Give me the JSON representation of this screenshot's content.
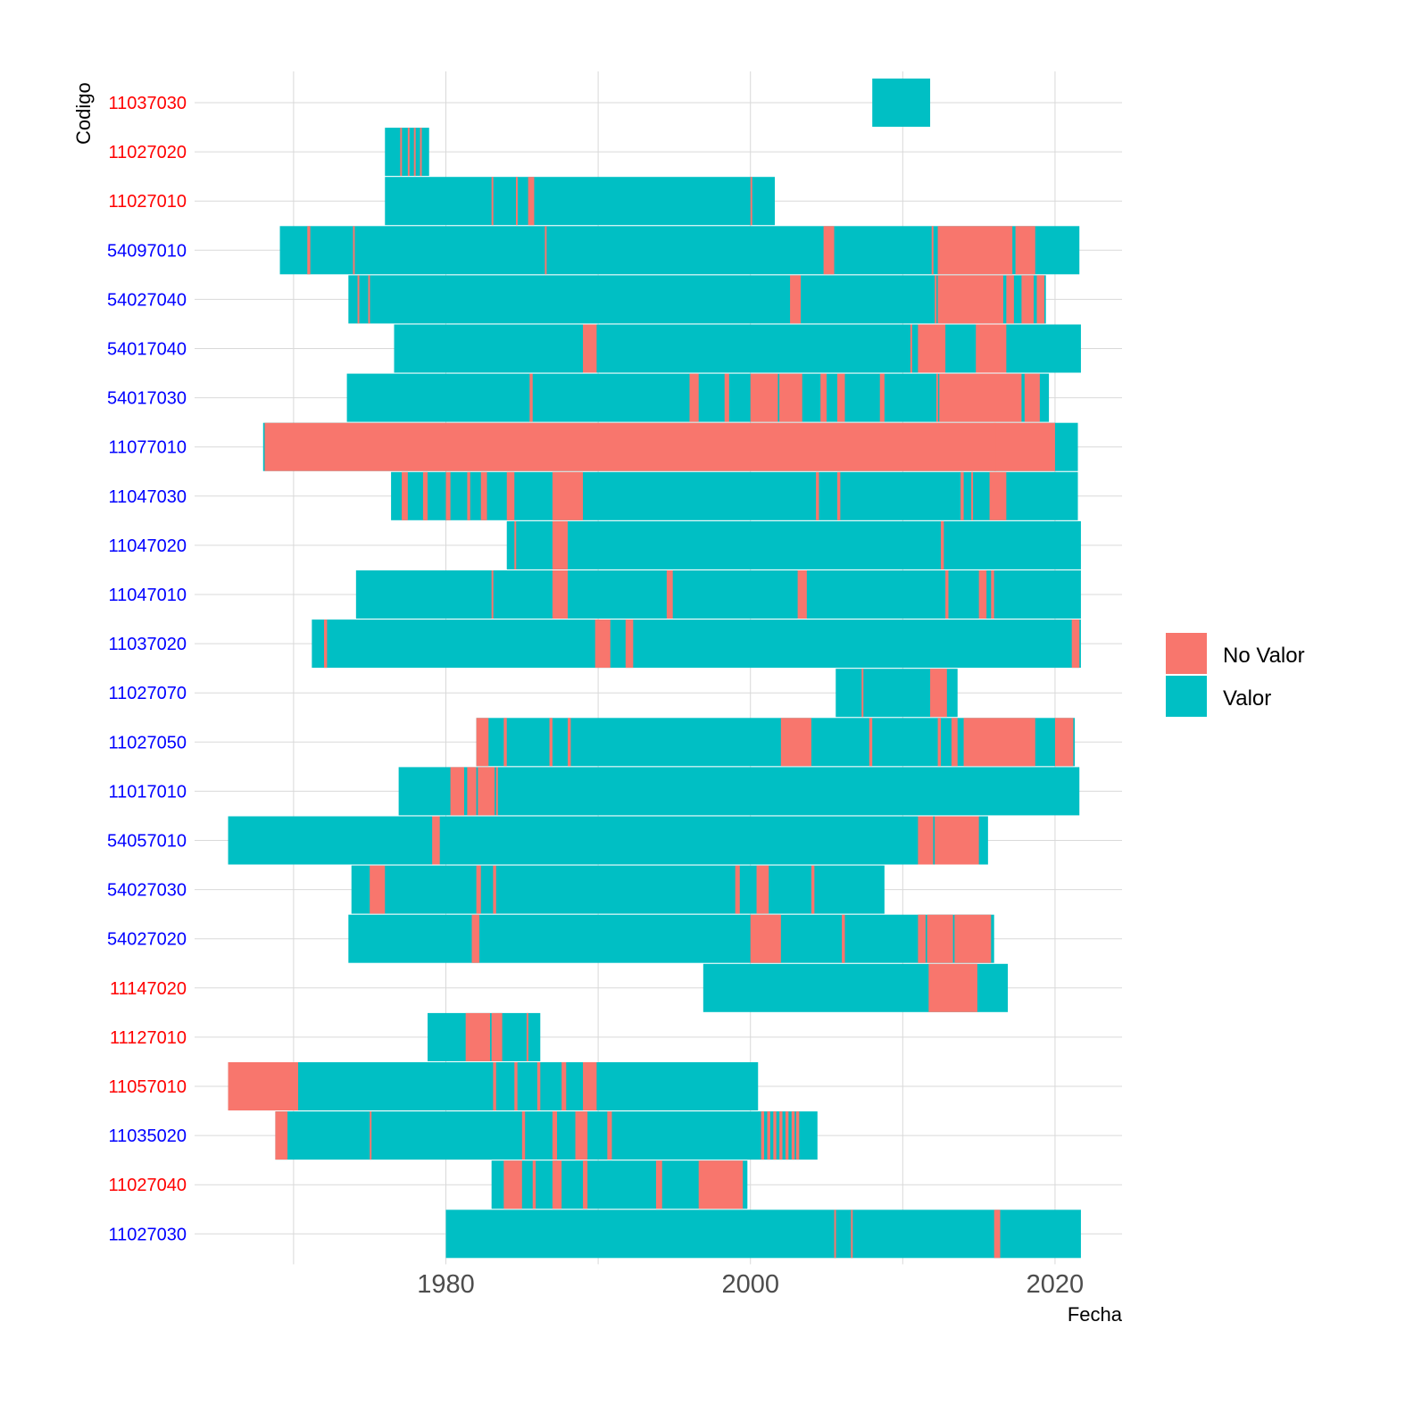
{
  "chart_data": {
    "type": "bar",
    "subtype": "timeline-coverage",
    "xlabel": "Fecha",
    "ylabel": "Codigo",
    "xlim": [
      1963.5,
      2024.4
    ],
    "x_ticks": [
      1980,
      2000,
      2020
    ],
    "x_minor_gridlines": [
      1970,
      1990,
      2010
    ],
    "grid": true,
    "legend": {
      "placement": "right",
      "entries": [
        {
          "key": "No Valor",
          "label": "No Valor",
          "color": "#F8766D"
        },
        {
          "key": "Valor",
          "label": "Valor",
          "color": "#00BFC4"
        }
      ]
    },
    "colors": {
      "No Valor": "#F8766D",
      "Valor": "#00BFC4",
      "grid": "#d9d9d9",
      "axis_text": "#4d4d4d"
    },
    "categories": [
      "11037030",
      "11027020",
      "11027010",
      "54097010",
      "54027040",
      "54017040",
      "54017030",
      "11077010",
      "11047030",
      "11047020",
      "11047010",
      "11037020",
      "11027070",
      "11027050",
      "11017010",
      "54057010",
      "54027030",
      "54027020",
      "11147020",
      "11127010",
      "11057010",
      "11035020",
      "11027040",
      "11027030"
    ],
    "series": [
      {
        "code": "11037030",
        "label_color": "red",
        "start": 2008.0,
        "end": 2011.8,
        "no_valor": []
      },
      {
        "code": "11027020",
        "label_color": "red",
        "start": 1976.0,
        "end": 1978.9,
        "no_valor": [
          [
            1977.0,
            1977.1
          ],
          [
            1977.5,
            1977.6
          ],
          [
            1977.9,
            1978.0
          ],
          [
            1978.3,
            1978.4
          ]
        ]
      },
      {
        "code": "11027010",
        "label_color": "red",
        "start": 1976.0,
        "end": 2001.6,
        "no_valor": [
          [
            1983.0,
            1983.1
          ],
          [
            1984.6,
            1984.7
          ],
          [
            1985.4,
            1985.8
          ],
          [
            2000.0,
            2000.1
          ]
        ]
      },
      {
        "code": "54097010",
        "label_color": "blue",
        "start": 1969.1,
        "end": 2021.6,
        "no_valor": [
          [
            1970.9,
            1971.1
          ],
          [
            1973.9,
            1974.0
          ],
          [
            1986.5,
            1986.6
          ],
          [
            2004.8,
            2004.9
          ],
          [
            2004.9,
            2005.5
          ],
          [
            2011.9,
            2012.0
          ],
          [
            2012.3,
            2017.2
          ],
          [
            2017.4,
            2018.7
          ]
        ]
      },
      {
        "code": "54027040",
        "label_color": "blue",
        "start": 1973.6,
        "end": 2019.4,
        "no_valor": [
          [
            1974.2,
            1974.3
          ],
          [
            1974.9,
            1975.0
          ],
          [
            2002.6,
            2003.3
          ],
          [
            2012.1,
            2012.2
          ],
          [
            2012.3,
            2016.6
          ],
          [
            2016.8,
            2017.3
          ],
          [
            2017.8,
            2018.6
          ],
          [
            2018.8,
            2019.3
          ]
        ]
      },
      {
        "code": "54017040",
        "label_color": "blue",
        "start": 1976.6,
        "end": 2021.7,
        "no_valor": [
          [
            1989.0,
            1989.9
          ],
          [
            2010.5,
            2010.6
          ],
          [
            2011.0,
            2012.8
          ],
          [
            2014.8,
            2016.8
          ]
        ]
      },
      {
        "code": "54017030",
        "label_color": "blue",
        "start": 1973.5,
        "end": 2019.6,
        "no_valor": [
          [
            1985.5,
            1985.7
          ],
          [
            1996.0,
            1996.6
          ],
          [
            1998.3,
            1998.6
          ],
          [
            2000.0,
            2001.8
          ],
          [
            2001.9,
            2003.4
          ],
          [
            2004.6,
            2005.0
          ],
          [
            2005.7,
            2006.2
          ],
          [
            2008.5,
            2008.8
          ],
          [
            2012.2,
            2012.3
          ],
          [
            2012.4,
            2017.8
          ],
          [
            2018.0,
            2019.0
          ]
        ]
      },
      {
        "code": "11077010",
        "label_color": "blue",
        "start": 1968.0,
        "end": 2021.5,
        "no_valor": [
          [
            1968.1,
            2020.0
          ],
          [
            2016.0,
            2016.1
          ]
        ]
      },
      {
        "code": "11047030",
        "label_color": "blue",
        "start": 1976.4,
        "end": 2021.5,
        "no_valor": [
          [
            1977.1,
            1977.5
          ],
          [
            1978.5,
            1978.8
          ],
          [
            1980.0,
            1980.3
          ],
          [
            1981.4,
            1981.6
          ],
          [
            1982.3,
            1982.7
          ],
          [
            1984.0,
            1984.5
          ],
          [
            1987.0,
            1989.0
          ],
          [
            2004.3,
            2004.5
          ],
          [
            2005.7,
            2005.9
          ],
          [
            2013.8,
            2014.0
          ],
          [
            2014.5,
            2014.6
          ],
          [
            2015.7,
            2016.8
          ]
        ]
      },
      {
        "code": "11047020",
        "label_color": "blue",
        "start": 1984.0,
        "end": 2021.7,
        "no_valor": [
          [
            1984.5,
            1984.6
          ],
          [
            1987.0,
            1988.0
          ],
          [
            2012.5,
            2012.7
          ]
        ]
      },
      {
        "code": "11047010",
        "label_color": "blue",
        "start": 1974.1,
        "end": 2021.7,
        "no_valor": [
          [
            1983.0,
            1983.1
          ],
          [
            1987.0,
            1988.0
          ],
          [
            1994.5,
            1994.9
          ],
          [
            2003.1,
            2003.7
          ],
          [
            2012.8,
            2013.0
          ],
          [
            2015.0,
            2015.5
          ],
          [
            2015.8,
            2016.0
          ]
        ]
      },
      {
        "code": "11037020",
        "label_color": "blue",
        "start": 1971.2,
        "end": 2021.7,
        "no_valor": [
          [
            1972.0,
            1972.2
          ],
          [
            1989.8,
            1990.8
          ],
          [
            1991.8,
            1992.3
          ],
          [
            2021.1,
            2021.6
          ]
        ]
      },
      {
        "code": "11027070",
        "label_color": "blue",
        "start": 2005.6,
        "end": 2013.6,
        "no_valor": [
          [
            2007.3,
            2007.4
          ],
          [
            2011.8,
            2012.9
          ]
        ]
      },
      {
        "code": "11027050",
        "label_color": "blue",
        "start": 1982.0,
        "end": 2021.3,
        "no_valor": [
          [
            1982.0,
            1982.8
          ],
          [
            1983.8,
            1984.0
          ],
          [
            1986.8,
            1987.0
          ],
          [
            1988.0,
            1988.2
          ],
          [
            2002.0,
            2004.0
          ],
          [
            2007.8,
            2008.0
          ],
          [
            2012.3,
            2012.5
          ],
          [
            2013.2,
            2013.6
          ],
          [
            2014.0,
            2018.7
          ],
          [
            2020.0,
            2021.2
          ]
        ]
      },
      {
        "code": "11017010",
        "label_color": "blue",
        "start": 1976.9,
        "end": 2021.6,
        "no_valor": [
          [
            1980.3,
            1981.2
          ],
          [
            1981.4,
            1982.0
          ],
          [
            1982.1,
            1983.2
          ],
          [
            1983.3,
            1983.4
          ]
        ]
      },
      {
        "code": "54057010",
        "label_color": "blue",
        "start": 1965.7,
        "end": 2015.6,
        "no_valor": [
          [
            1979.1,
            1979.6
          ],
          [
            2011.0,
            2012.0
          ],
          [
            2012.1,
            2015.0
          ]
        ]
      },
      {
        "code": "54027030",
        "label_color": "blue",
        "start": 1973.8,
        "end": 2008.8,
        "no_valor": [
          [
            1975.0,
            1976.0
          ],
          [
            1982.0,
            1982.3
          ],
          [
            1983.1,
            1983.3
          ],
          [
            1999.0,
            1999.3
          ],
          [
            2000.4,
            2001.2
          ],
          [
            2004.0,
            2004.2
          ]
        ]
      },
      {
        "code": "54027020",
        "label_color": "blue",
        "start": 1973.6,
        "end": 2016.0,
        "no_valor": [
          [
            1981.7,
            1982.2
          ],
          [
            2000.0,
            2002.0
          ],
          [
            2006.0,
            2006.2
          ],
          [
            2011.0,
            2011.5
          ],
          [
            2011.6,
            2013.3
          ],
          [
            2013.4,
            2015.8
          ]
        ]
      },
      {
        "code": "11147020",
        "label_color": "red",
        "start": 1996.9,
        "end": 2016.9,
        "no_valor": [
          [
            2011.7,
            2014.9
          ]
        ]
      },
      {
        "code": "11127010",
        "label_color": "red",
        "start": 1978.8,
        "end": 1986.2,
        "no_valor": [
          [
            1981.3,
            1982.9
          ],
          [
            1983.0,
            1983.7
          ],
          [
            1985.3,
            1985.4
          ]
        ]
      },
      {
        "code": "11057010",
        "label_color": "red",
        "start": 1965.7,
        "end": 2000.5,
        "no_valor": [
          [
            1965.7,
            1970.3
          ],
          [
            1983.1,
            1983.3
          ],
          [
            1984.5,
            1984.7
          ],
          [
            1986.0,
            1986.2
          ],
          [
            1987.6,
            1987.9
          ],
          [
            1989.0,
            1989.9
          ]
        ]
      },
      {
        "code": "11035020",
        "label_color": "blue",
        "start": 1968.8,
        "end": 2004.4,
        "no_valor": [
          [
            1968.8,
            1969.6
          ],
          [
            1975.0,
            1975.1
          ],
          [
            1985.0,
            1985.2
          ],
          [
            1987.0,
            1987.3
          ],
          [
            1988.5,
            1989.3
          ],
          [
            1990.6,
            1990.9
          ],
          [
            2000.7,
            2000.9
          ],
          [
            2001.1,
            2001.3
          ],
          [
            2001.5,
            2001.7
          ],
          [
            2001.9,
            2002.1
          ],
          [
            2002.3,
            2002.5
          ],
          [
            2002.7,
            2002.9
          ],
          [
            2003.0,
            2003.2
          ]
        ]
      },
      {
        "code": "11027040",
        "label_color": "red",
        "start": 1983.0,
        "end": 1999.8,
        "no_valor": [
          [
            1983.8,
            1985.0
          ],
          [
            1985.7,
            1985.9
          ],
          [
            1987.0,
            1987.6
          ],
          [
            1989.0,
            1989.3
          ],
          [
            1993.8,
            1994.2
          ],
          [
            1996.6,
            1999.5
          ]
        ]
      },
      {
        "code": "11027030",
        "label_color": "blue",
        "start": 1980.0,
        "end": 2021.7,
        "no_valor": [
          [
            2005.5,
            2005.6
          ],
          [
            2006.6,
            2006.7
          ],
          [
            2016.0,
            2016.4
          ]
        ]
      }
    ]
  }
}
